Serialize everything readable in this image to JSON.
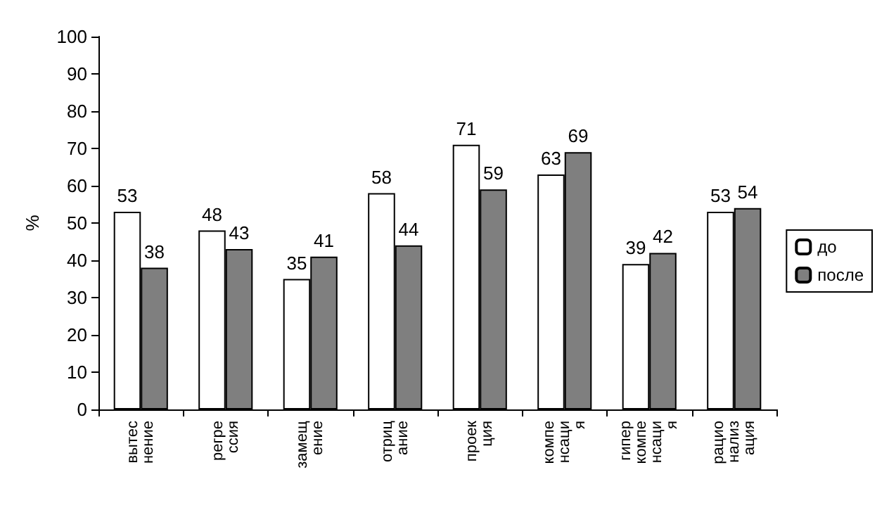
{
  "chart_data": {
    "type": "bar",
    "ylabel": "%",
    "categories": [
      "вытеснение",
      "регрессия",
      "замещение",
      "отрицание",
      "проекция",
      "компенсация",
      "гиперкомпенсация",
      "рационализация"
    ],
    "series": [
      {
        "name": "до",
        "color": "#ffffff",
        "values": [
          53,
          48,
          35,
          58,
          71,
          63,
          39,
          53
        ]
      },
      {
        "name": "после",
        "color": "#7f7f7f",
        "values": [
          38,
          43,
          41,
          44,
          59,
          69,
          42,
          54
        ]
      }
    ],
    "ylim": [
      0,
      100
    ],
    "yticks": [
      0,
      10,
      20,
      30,
      40,
      50,
      60,
      70,
      80,
      90,
      100
    ],
    "grid": false,
    "legend": "right",
    "data_labels": true
  }
}
